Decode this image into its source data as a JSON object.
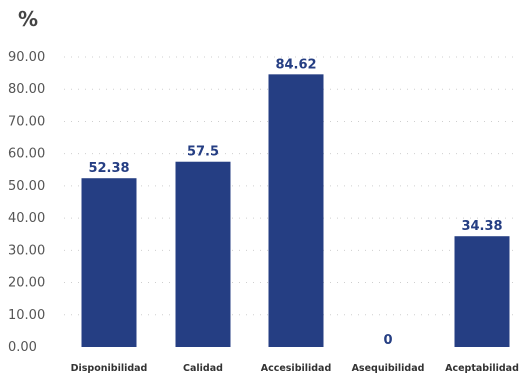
{
  "colors": {
    "bar": "#253E83",
    "value_label": "#253E83",
    "grid": "#cfcfcf"
  },
  "chart_data": {
    "type": "bar",
    "ylabel": "%",
    "xlabel": "",
    "title": "",
    "categories": [
      "Disponibilidad",
      "Calidad",
      "Accesibilidad",
      "Asequibilidad",
      "Aceptabilidad"
    ],
    "values": [
      52.38,
      57.5,
      84.62,
      0,
      34.38
    ],
    "value_labels": [
      "52.38",
      "57.5",
      "84.62",
      "0",
      "34.38"
    ],
    "ylim": [
      0,
      90
    ],
    "yticks": [
      "0.00",
      "10.00",
      "20.00",
      "30.00",
      "40.00",
      "50.00",
      "60.00",
      "70.00",
      "80.00",
      "90.00"
    ],
    "grid": true,
    "legend": "none"
  }
}
